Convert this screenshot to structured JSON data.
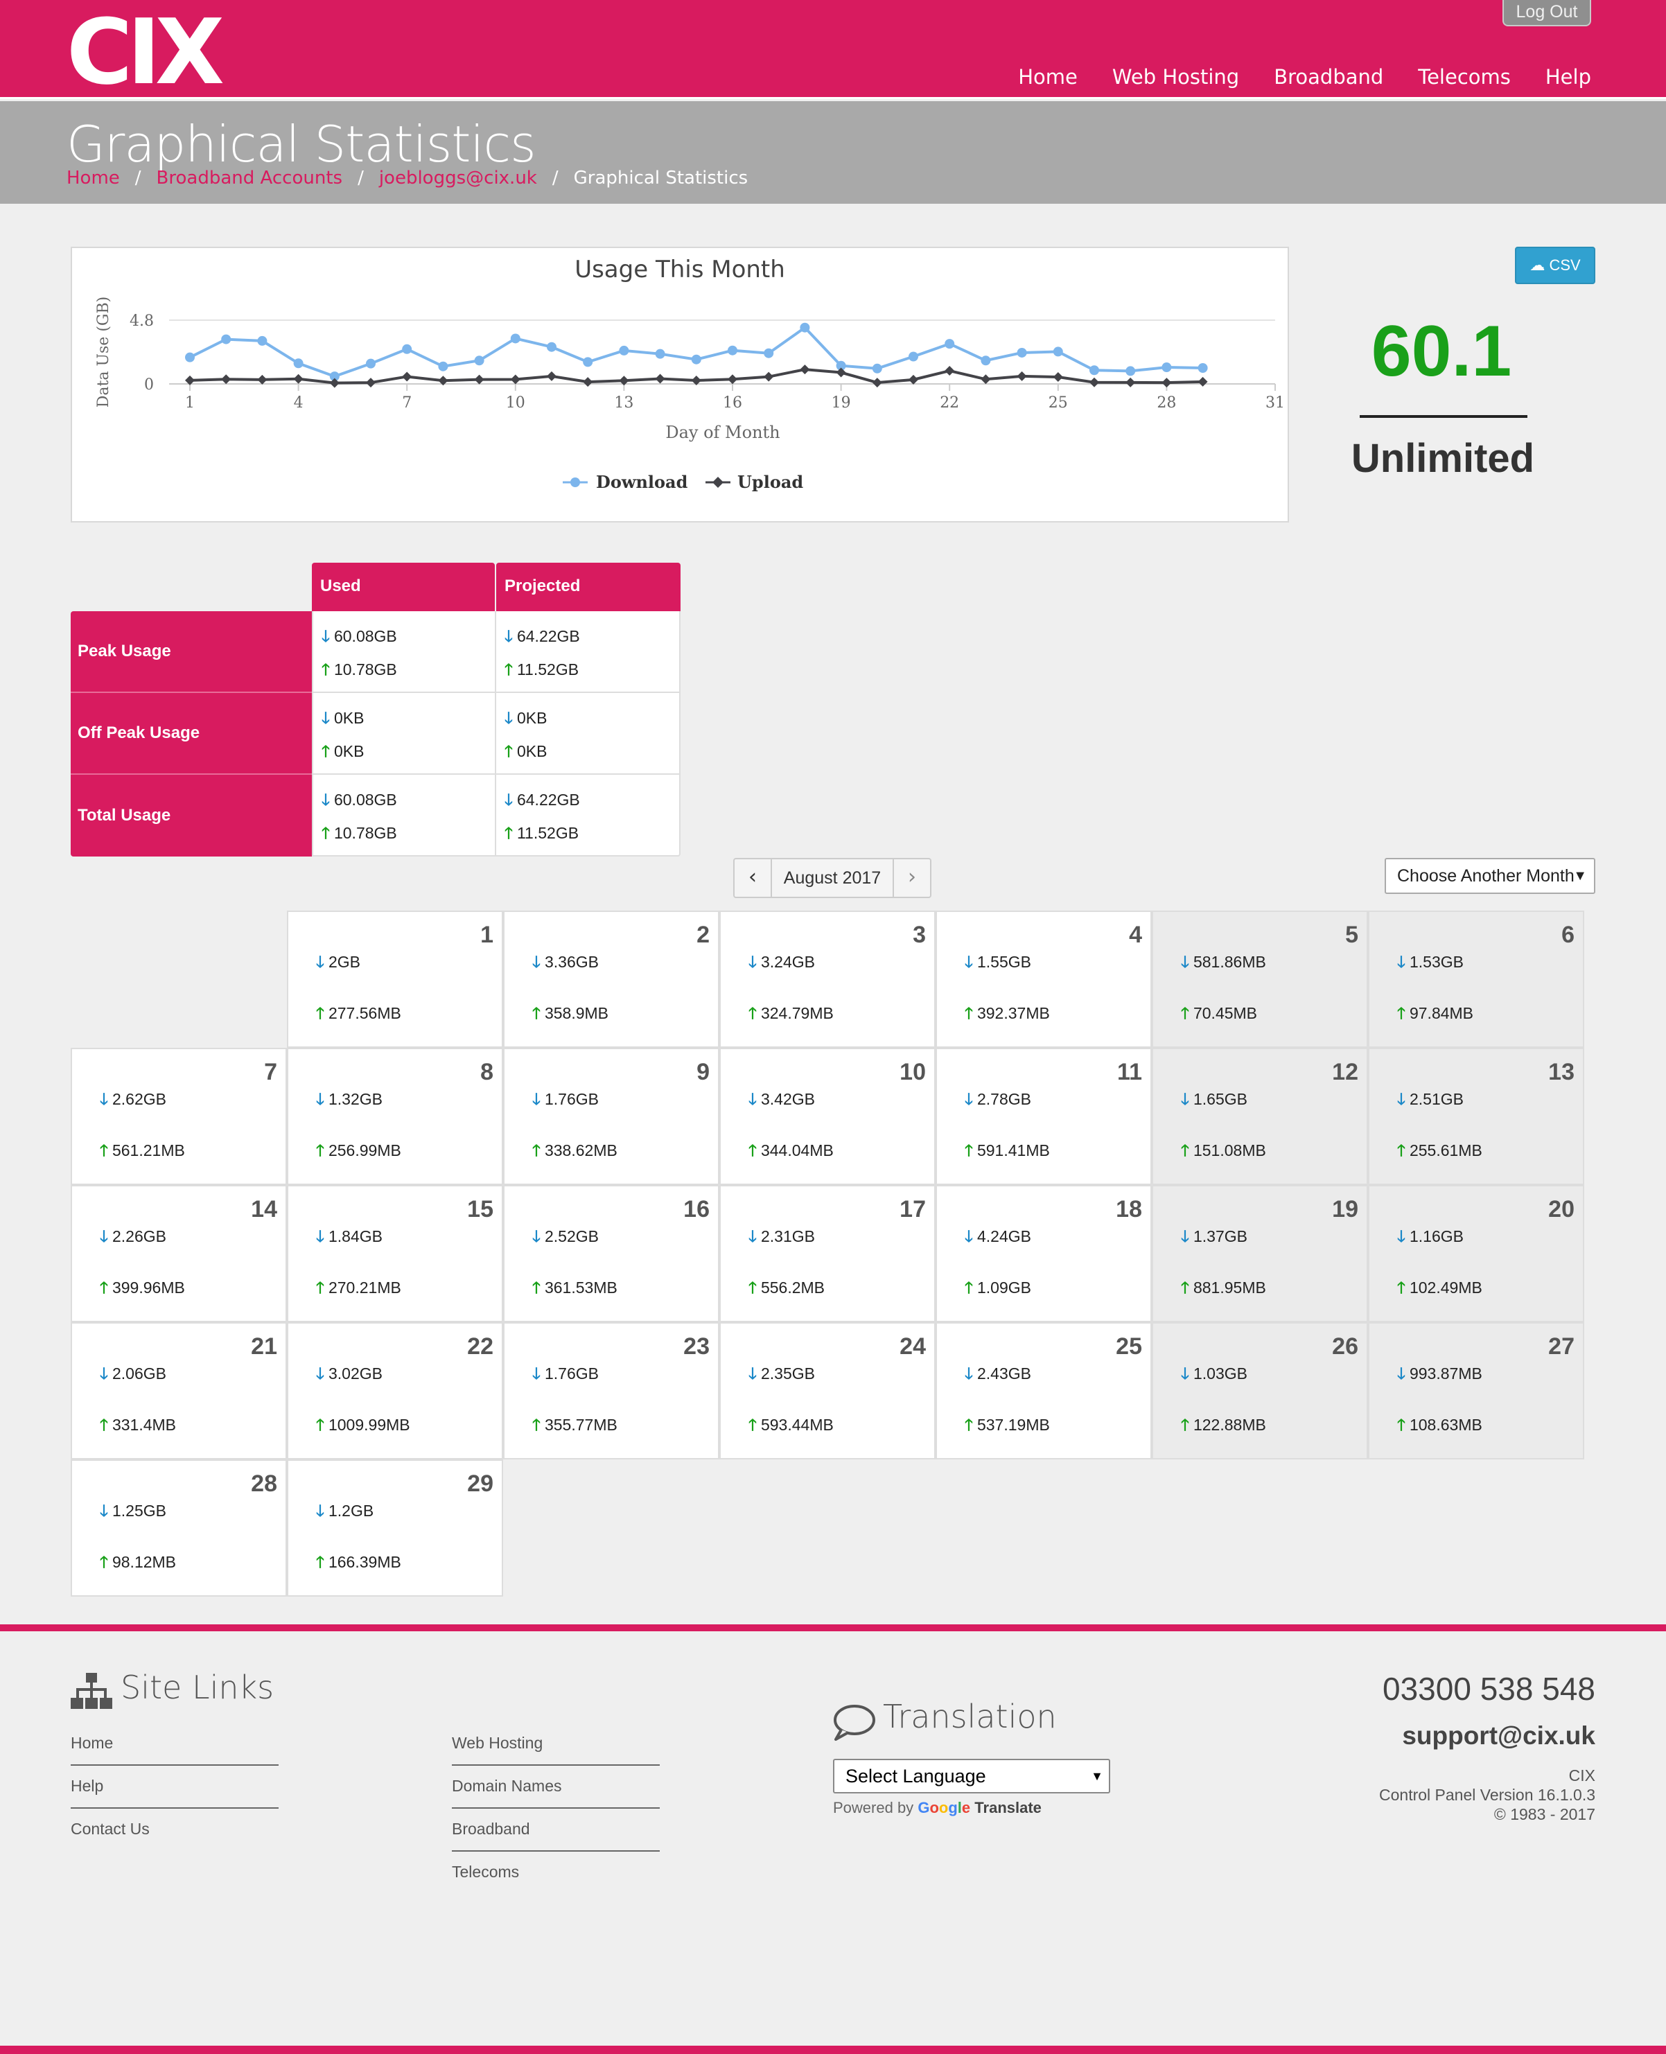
{
  "header": {
    "logo": "CIX",
    "logout_label": "Log Out",
    "nav": [
      "Home",
      "Web Hosting",
      "Broadband",
      "Telecoms",
      "Help"
    ]
  },
  "page": {
    "title": "Graphical Statistics",
    "breadcrumb": [
      "Home",
      "Broadband Accounts",
      "joebloggs@cix.uk",
      "Graphical Statistics"
    ]
  },
  "chart_data": {
    "type": "line",
    "title": "Usage This Month",
    "xlabel": "Day of Month",
    "ylabel": "Data Use (GB)",
    "x_ticks": [
      1,
      4,
      7,
      10,
      13,
      16,
      19,
      22,
      25,
      28,
      31
    ],
    "y_ticks": [
      0,
      4.8
    ],
    "xlim": [
      1,
      31
    ],
    "ylim": [
      0,
      4.8
    ],
    "grid": true,
    "legend": "bottom-center",
    "x": [
      1,
      2,
      3,
      4,
      5,
      6,
      7,
      8,
      9,
      10,
      11,
      12,
      13,
      14,
      15,
      16,
      17,
      18,
      19,
      20,
      21,
      22,
      23,
      24,
      25,
      26,
      27,
      28,
      29
    ],
    "series": [
      {
        "name": "Download",
        "color": "#7cb5ec",
        "values": [
          2.0,
          3.36,
          3.24,
          1.55,
          0.57,
          1.53,
          2.62,
          1.32,
          1.76,
          3.42,
          2.78,
          1.65,
          2.51,
          2.26,
          1.84,
          2.52,
          2.31,
          4.24,
          1.37,
          1.16,
          2.06,
          3.02,
          1.76,
          2.35,
          2.43,
          1.03,
          0.97,
          1.25,
          1.2
        ]
      },
      {
        "name": "Upload",
        "color": "#434348",
        "values": [
          0.27,
          0.35,
          0.32,
          0.38,
          0.07,
          0.1,
          0.55,
          0.25,
          0.33,
          0.34,
          0.58,
          0.15,
          0.25,
          0.39,
          0.26,
          0.35,
          0.54,
          1.09,
          0.86,
          0.1,
          0.32,
          0.99,
          0.35,
          0.58,
          0.52,
          0.12,
          0.11,
          0.1,
          0.16
        ]
      }
    ]
  },
  "csv_label": "CSV",
  "summary": {
    "total": "60.1",
    "plan": "Unlimited"
  },
  "usage_table": {
    "headers": [
      "Used",
      "Projected"
    ],
    "rows": [
      {
        "label": "Peak Usage",
        "used_down": "60.08GB",
        "used_up": "10.78GB",
        "proj_down": "64.22GB",
        "proj_up": "11.52GB"
      },
      {
        "label": "Off Peak Usage",
        "used_down": "0KB",
        "used_up": "0KB",
        "proj_down": "0KB",
        "proj_up": "0KB"
      },
      {
        "label": "Total Usage",
        "used_down": "60.08GB",
        "used_up": "10.78GB",
        "proj_down": "64.22GB",
        "proj_up": "11.52GB"
      }
    ]
  },
  "month_nav": {
    "label": "August 2017",
    "select_label": "Choose Another Month"
  },
  "calendar": [
    {
      "day": "1",
      "down": "2GB",
      "up": "277.56MB"
    },
    {
      "day": "2",
      "down": "3.36GB",
      "up": "358.9MB"
    },
    {
      "day": "3",
      "down": "3.24GB",
      "up": "324.79MB"
    },
    {
      "day": "4",
      "down": "1.55GB",
      "up": "392.37MB"
    },
    {
      "day": "5",
      "down": "581.86MB",
      "up": "70.45MB"
    },
    {
      "day": "6",
      "down": "1.53GB",
      "up": "97.84MB"
    },
    {
      "day": "7",
      "down": "2.62GB",
      "up": "561.21MB"
    },
    {
      "day": "8",
      "down": "1.32GB",
      "up": "256.99MB"
    },
    {
      "day": "9",
      "down": "1.76GB",
      "up": "338.62MB"
    },
    {
      "day": "10",
      "down": "3.42GB",
      "up": "344.04MB"
    },
    {
      "day": "11",
      "down": "2.78GB",
      "up": "591.41MB"
    },
    {
      "day": "12",
      "down": "1.65GB",
      "up": "151.08MB"
    },
    {
      "day": "13",
      "down": "2.51GB",
      "up": "255.61MB"
    },
    {
      "day": "14",
      "down": "2.26GB",
      "up": "399.96MB"
    },
    {
      "day": "15",
      "down": "1.84GB",
      "up": "270.21MB"
    },
    {
      "day": "16",
      "down": "2.52GB",
      "up": "361.53MB"
    },
    {
      "day": "17",
      "down": "2.31GB",
      "up": "556.2MB"
    },
    {
      "day": "18",
      "down": "4.24GB",
      "up": "1.09GB"
    },
    {
      "day": "19",
      "down": "1.37GB",
      "up": "881.95MB"
    },
    {
      "day": "20",
      "down": "1.16GB",
      "up": "102.49MB"
    },
    {
      "day": "21",
      "down": "2.06GB",
      "up": "331.4MB"
    },
    {
      "day": "22",
      "down": "3.02GB",
      "up": "1009.99MB"
    },
    {
      "day": "23",
      "down": "1.76GB",
      "up": "355.77MB"
    },
    {
      "day": "24",
      "down": "2.35GB",
      "up": "593.44MB"
    },
    {
      "day": "25",
      "down": "2.43GB",
      "up": "537.19MB"
    },
    {
      "day": "26",
      "down": "1.03GB",
      "up": "122.88MB"
    },
    {
      "day": "27",
      "down": "993.87MB",
      "up": "108.63MB"
    },
    {
      "day": "28",
      "down": "1.25GB",
      "up": "98.12MB"
    },
    {
      "day": "29",
      "down": "1.2GB",
      "up": "166.39MB"
    }
  ],
  "footer": {
    "site_links_title": "Site Links",
    "links_col1": [
      "Home",
      "Help",
      "Contact Us"
    ],
    "links_col2": [
      "Web Hosting",
      "Domain Names",
      "Broadband",
      "Telecoms"
    ],
    "translation_title": "Translation",
    "language_select": "Select Language",
    "powered_by": "Powered by",
    "google": "Google",
    "translate": "Translate",
    "phone": "03300 538 548",
    "email": "support@cix.uk",
    "company": "CIX",
    "version": "Control Panel Version 16.1.0.3",
    "copyright": "© 1983 - 2017"
  }
}
